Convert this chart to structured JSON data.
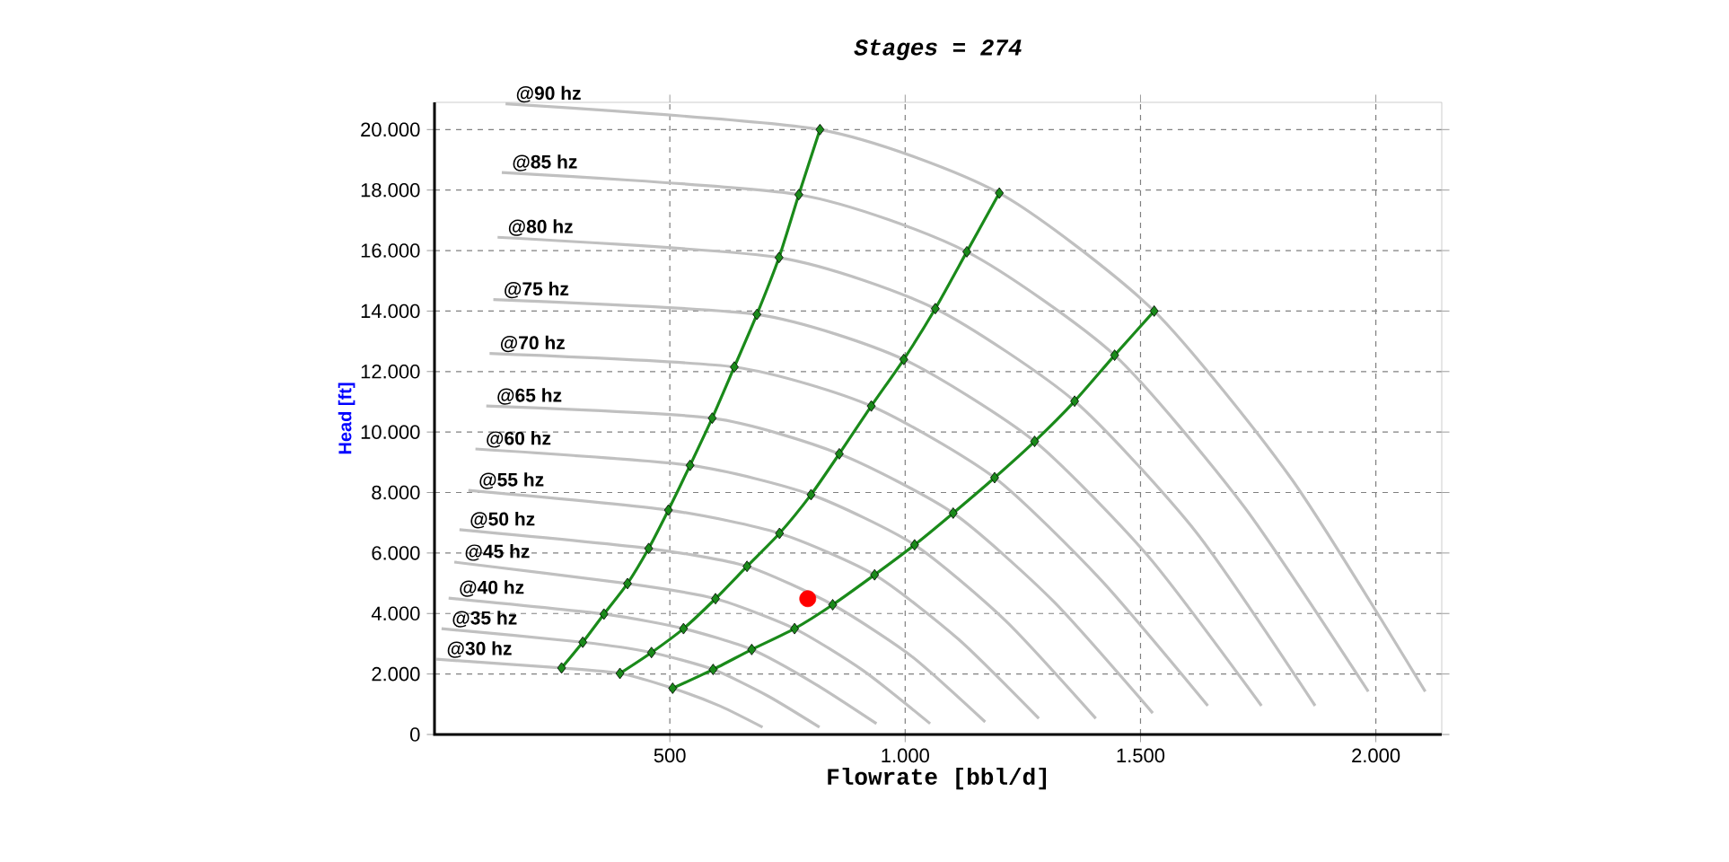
{
  "chart_data": {
    "type": "line",
    "title": "Stages = 274",
    "xlabel": "Flowrate [bbl/d]",
    "ylabel": "Head [ft]",
    "xlim": [
      0,
      2140
    ],
    "ylim": [
      0,
      20900
    ],
    "xticks": [
      500,
      {
        "value": 1000,
        "label": "1.000"
      },
      {
        "value": 1500,
        "label": "1.500"
      },
      {
        "value": 2000,
        "label": "2.000"
      }
    ],
    "yticks": [
      0,
      {
        "value": 2000,
        "label": "2.000"
      },
      {
        "value": 4000,
        "label": "4.000"
      },
      {
        "value": 6000,
        "label": "6.000"
      },
      {
        "value": 8000,
        "label": "8.000"
      },
      {
        "value": 10000,
        "label": "10.000"
      },
      {
        "value": 12000,
        "label": "12.000"
      },
      {
        "value": 14000,
        "label": "14.000"
      },
      {
        "value": 16000,
        "label": "16.000"
      },
      {
        "value": 18000,
        "label": "18.000"
      },
      {
        "value": 20000,
        "label": "20.000"
      }
    ],
    "grid": true,
    "series": [
      {
        "name": "@30 hz",
        "color": "#c0c0c0",
        "marker": "none",
        "x": [
          4,
          270,
          394,
          506,
          607,
          697
        ],
        "values": [
          2490,
          2200,
          2020,
          1530,
          938,
          240
        ]
      },
      {
        "name": "@35 hz",
        "color": "#c0c0c0",
        "marker": "none",
        "x": [
          15,
          315,
          461,
          592,
          708,
          818
        ],
        "values": [
          3500,
          3050,
          2710,
          2150,
          1277,
          240
        ]
      },
      {
        "name": "@40 hz",
        "color": "#c0c0c0",
        "marker": "none",
        "x": [
          30,
          360,
          529,
          674,
          809,
          939
        ],
        "values": [
          4510,
          3980,
          3500,
          2810,
          1668,
          360
        ]
      },
      {
        "name": "@45 hz",
        "color": "#c0c0c0",
        "marker": "none",
        "x": [
          42,
          410,
          597,
          765,
          911,
          1053
        ],
        "values": [
          5700,
          4990,
          4490,
          3500,
          2111,
          360
        ]
      },
      {
        "name": "@50 hz",
        "color": "#c0c0c0",
        "marker": "none",
        "x": [
          53,
          455,
          664,
          846,
          1012,
          1170
        ],
        "values": [
          6770,
          6150,
          5560,
          4290,
          2606,
          415
        ]
      },
      {
        "name": "@55 hz",
        "color": "#c0c0c0",
        "marker": "none",
        "x": [
          72,
          497,
          733,
          935,
          1113,
          1284
        ],
        "values": [
          8070,
          7420,
          6650,
          5280,
          3154,
          530
        ]
      },
      {
        "name": "@60 hz",
        "color": "#c0c0c0",
        "marker": "none",
        "x": [
          87,
          543,
          800,
          1020,
          1214,
          1405
        ],
        "values": [
          9440,
          8900,
          7930,
          6270,
          3753,
          530
        ]
      },
      {
        "name": "@65 hz",
        "color": "#c0c0c0",
        "marker": "none",
        "x": [
          110,
          590,
          860,
          1102,
          1315,
          1526
        ],
        "values": [
          10860,
          10460,
          9280,
          7320,
          4405,
          710
        ]
      },
      {
        "name": "@70 hz",
        "color": "#c0c0c0",
        "marker": "none",
        "x": [
          117,
          637,
          928,
          1190,
          1416,
          1643
        ],
        "values": [
          12600,
          12150,
          10860,
          8490,
          5109,
          950
        ]
      },
      {
        "name": "@75 hz",
        "color": "#c0c0c0",
        "marker": "none",
        "x": [
          125,
          685,
          997,
          1275,
          1518,
          1757
        ],
        "values": [
          14380,
          13890,
          12400,
          9690,
          5865,
          950
        ]
      },
      {
        "name": "@80 hz",
        "color": "#c0c0c0",
        "marker": "none",
        "x": [
          134,
          732,
          1064,
          1360,
          1619,
          1871
        ],
        "values": [
          16440,
          15770,
          14080,
          11020,
          6673,
          950
        ]
      },
      {
        "name": "@85 hz",
        "color": "#c0c0c0",
        "marker": "none",
        "x": [
          143,
          774,
          1131,
          1445,
          1720,
          1984
        ],
        "values": [
          18580,
          17850,
          15960,
          12540,
          7533,
          1420
        ]
      },
      {
        "name": "@90 hz",
        "color": "#c0c0c0",
        "marker": "none",
        "x": [
          151,
          819,
          1200,
          1529,
          1821,
          2105
        ],
        "values": [
          20850,
          20000,
          17900,
          14000,
          8445,
          1420
        ]
      },
      {
        "color": "#1a8a1a",
        "marker": "diamond",
        "x": [
          270,
          315,
          360,
          410,
          455,
          497,
          543,
          590,
          637,
          685,
          732,
          774,
          819
        ],
        "values": [
          2200,
          3050,
          3980,
          4990,
          6150,
          7420,
          8900,
          10460,
          12150,
          13890,
          15770,
          17850,
          20000
        ]
      },
      {
        "color": "#1a8a1a",
        "marker": "diamond",
        "x": [
          394,
          461,
          529,
          597,
          664,
          733,
          800,
          860,
          928,
          997,
          1064,
          1131,
          1200
        ],
        "values": [
          2020,
          2710,
          3500,
          4490,
          5560,
          6650,
          7930,
          9280,
          10860,
          12400,
          14080,
          15960,
          17900
        ]
      },
      {
        "color": "#1a8a1a",
        "marker": "diamond",
        "x": [
          506,
          592,
          674,
          765,
          846,
          935,
          1020,
          1102,
          1190,
          1275,
          1360,
          1445,
          1529
        ],
        "values": [
          1530,
          2150,
          2810,
          3500,
          4290,
          5280,
          6270,
          7320,
          8490,
          9690,
          11020,
          12540,
          14000
        ]
      },
      {
        "type": "scatter",
        "color": "#ff0000",
        "marker": "circle",
        "x": [
          793
        ],
        "values": [
          4490
        ]
      }
    ]
  }
}
